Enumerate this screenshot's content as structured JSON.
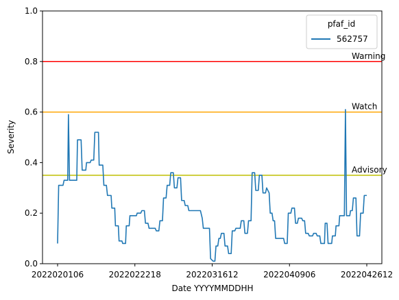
{
  "chart_data": {
    "type": "line",
    "title": "",
    "xlabel": "Date YYYYMMDDHH",
    "ylabel": "Severity",
    "ylim": [
      0,
      1
    ],
    "y_ticks": [
      0.0,
      0.2,
      0.4,
      0.6,
      0.8,
      1.0
    ],
    "y_tick_labels": [
      "0.0",
      "0.2",
      "0.4",
      "0.6",
      "0.8",
      "1.0"
    ],
    "x_tick_labels": [
      "2022020106",
      "2022022218",
      "2022031612",
      "2022040906",
      "2022042612"
    ],
    "grid": false,
    "legend": {
      "title": "pfaf_id",
      "placement": "upper right",
      "entries": [
        "562757"
      ]
    },
    "thresholds": [
      {
        "label": "Warning",
        "value": 0.8,
        "color": "#ff0000"
      },
      {
        "label": "Watch",
        "value": 0.6,
        "color": "#ffa500"
      },
      {
        "label": "Advisory",
        "value": 0.35,
        "color": "#bfbf00"
      }
    ],
    "series": [
      {
        "name": "562757",
        "color": "#1f77b4",
        "points": [
          [
            0.0,
            0.08
          ],
          [
            0.3,
            0.31
          ],
          [
            1.5,
            0.31
          ],
          [
            1.8,
            0.33
          ],
          [
            2.8,
            0.33
          ],
          [
            3.0,
            0.59
          ],
          [
            3.3,
            0.33
          ],
          [
            5.3,
            0.33
          ],
          [
            5.5,
            0.49
          ],
          [
            6.5,
            0.49
          ],
          [
            6.8,
            0.37
          ],
          [
            7.8,
            0.37
          ],
          [
            8.0,
            0.4
          ],
          [
            9.0,
            0.4
          ],
          [
            9.3,
            0.41
          ],
          [
            10.0,
            0.41
          ],
          [
            10.3,
            0.52
          ],
          [
            11.3,
            0.52
          ],
          [
            11.5,
            0.39
          ],
          [
            12.5,
            0.39
          ],
          [
            12.8,
            0.31
          ],
          [
            13.5,
            0.31
          ],
          [
            13.8,
            0.27
          ],
          [
            14.8,
            0.27
          ],
          [
            15.0,
            0.22
          ],
          [
            15.8,
            0.22
          ],
          [
            16.0,
            0.15
          ],
          [
            16.8,
            0.15
          ],
          [
            17.0,
            0.09
          ],
          [
            17.8,
            0.09
          ],
          [
            18.0,
            0.08
          ],
          [
            18.8,
            0.08
          ],
          [
            19.0,
            0.15
          ],
          [
            19.8,
            0.15
          ],
          [
            20.0,
            0.19
          ],
          [
            21.8,
            0.19
          ],
          [
            22.0,
            0.2
          ],
          [
            23.0,
            0.2
          ],
          [
            23.3,
            0.21
          ],
          [
            24.0,
            0.21
          ],
          [
            24.3,
            0.16
          ],
          [
            25.0,
            0.16
          ],
          [
            25.3,
            0.14
          ],
          [
            27.0,
            0.14
          ],
          [
            27.3,
            0.13
          ],
          [
            28.0,
            0.13
          ],
          [
            28.3,
            0.17
          ],
          [
            29.0,
            0.17
          ],
          [
            29.3,
            0.26
          ],
          [
            30.0,
            0.26
          ],
          [
            30.3,
            0.31
          ],
          [
            31.0,
            0.31
          ],
          [
            31.3,
            0.36
          ],
          [
            32.0,
            0.36
          ],
          [
            32.3,
            0.3
          ],
          [
            33.0,
            0.3
          ],
          [
            33.3,
            0.34
          ],
          [
            34.0,
            0.34
          ],
          [
            34.3,
            0.25
          ],
          [
            35.0,
            0.25
          ],
          [
            35.3,
            0.23
          ],
          [
            36.0,
            0.23
          ],
          [
            36.3,
            0.21
          ],
          [
            39.5,
            0.21
          ],
          [
            40.0,
            0.18
          ],
          [
            40.3,
            0.14
          ],
          [
            42.0,
            0.14
          ],
          [
            42.3,
            0.02
          ],
          [
            43.0,
            0.01
          ],
          [
            43.5,
            0.01
          ],
          [
            43.8,
            0.07
          ],
          [
            44.3,
            0.07
          ],
          [
            44.6,
            0.1
          ],
          [
            45.0,
            0.1
          ],
          [
            45.3,
            0.12
          ],
          [
            46.0,
            0.12
          ],
          [
            46.3,
            0.07
          ],
          [
            47.0,
            0.07
          ],
          [
            47.3,
            0.04
          ],
          [
            48.0,
            0.04
          ],
          [
            48.3,
            0.13
          ],
          [
            49.0,
            0.13
          ],
          [
            49.3,
            0.14
          ],
          [
            50.5,
            0.14
          ],
          [
            50.8,
            0.17
          ],
          [
            51.5,
            0.17
          ],
          [
            51.8,
            0.12
          ],
          [
            52.5,
            0.12
          ],
          [
            52.8,
            0.17
          ],
          [
            53.5,
            0.17
          ],
          [
            53.8,
            0.36
          ],
          [
            54.5,
            0.36
          ],
          [
            54.8,
            0.29
          ],
          [
            55.5,
            0.29
          ],
          [
            55.8,
            0.35
          ],
          [
            56.5,
            0.35
          ],
          [
            56.8,
            0.28
          ],
          [
            57.5,
            0.28
          ],
          [
            57.8,
            0.3
          ],
          [
            58.5,
            0.28
          ],
          [
            58.8,
            0.2
          ],
          [
            59.3,
            0.2
          ],
          [
            59.6,
            0.17
          ],
          [
            60.0,
            0.17
          ],
          [
            60.3,
            0.1
          ],
          [
            62.5,
            0.1
          ],
          [
            62.8,
            0.08
          ],
          [
            63.5,
            0.08
          ],
          [
            63.8,
            0.2
          ],
          [
            64.5,
            0.2
          ],
          [
            64.8,
            0.22
          ],
          [
            65.5,
            0.22
          ],
          [
            65.8,
            0.16
          ],
          [
            66.3,
            0.16
          ],
          [
            66.6,
            0.18
          ],
          [
            67.5,
            0.18
          ],
          [
            67.8,
            0.17
          ],
          [
            68.3,
            0.17
          ],
          [
            68.6,
            0.12
          ],
          [
            69.3,
            0.12
          ],
          [
            69.6,
            0.11
          ],
          [
            70.5,
            0.11
          ],
          [
            70.8,
            0.12
          ],
          [
            71.5,
            0.12
          ],
          [
            71.8,
            0.11
          ],
          [
            72.5,
            0.11
          ],
          [
            72.8,
            0.08
          ],
          [
            73.8,
            0.08
          ],
          [
            74.0,
            0.16
          ],
          [
            74.5,
            0.16
          ],
          [
            74.8,
            0.08
          ],
          [
            75.8,
            0.08
          ],
          [
            76.0,
            0.11
          ],
          [
            76.8,
            0.11
          ],
          [
            77.0,
            0.15
          ],
          [
            77.8,
            0.15
          ],
          [
            78.0,
            0.19
          ],
          [
            79.3,
            0.19
          ],
          [
            79.6,
            0.61
          ],
          [
            79.9,
            0.19
          ],
          [
            80.8,
            0.19
          ],
          [
            81.0,
            0.21
          ],
          [
            81.5,
            0.21
          ],
          [
            81.8,
            0.26
          ],
          [
            82.5,
            0.26
          ],
          [
            82.8,
            0.11
          ],
          [
            83.5,
            0.11
          ],
          [
            83.8,
            0.2
          ],
          [
            84.5,
            0.2
          ],
          [
            84.8,
            0.27
          ],
          [
            85.5,
            0.27
          ]
        ]
      }
    ]
  }
}
